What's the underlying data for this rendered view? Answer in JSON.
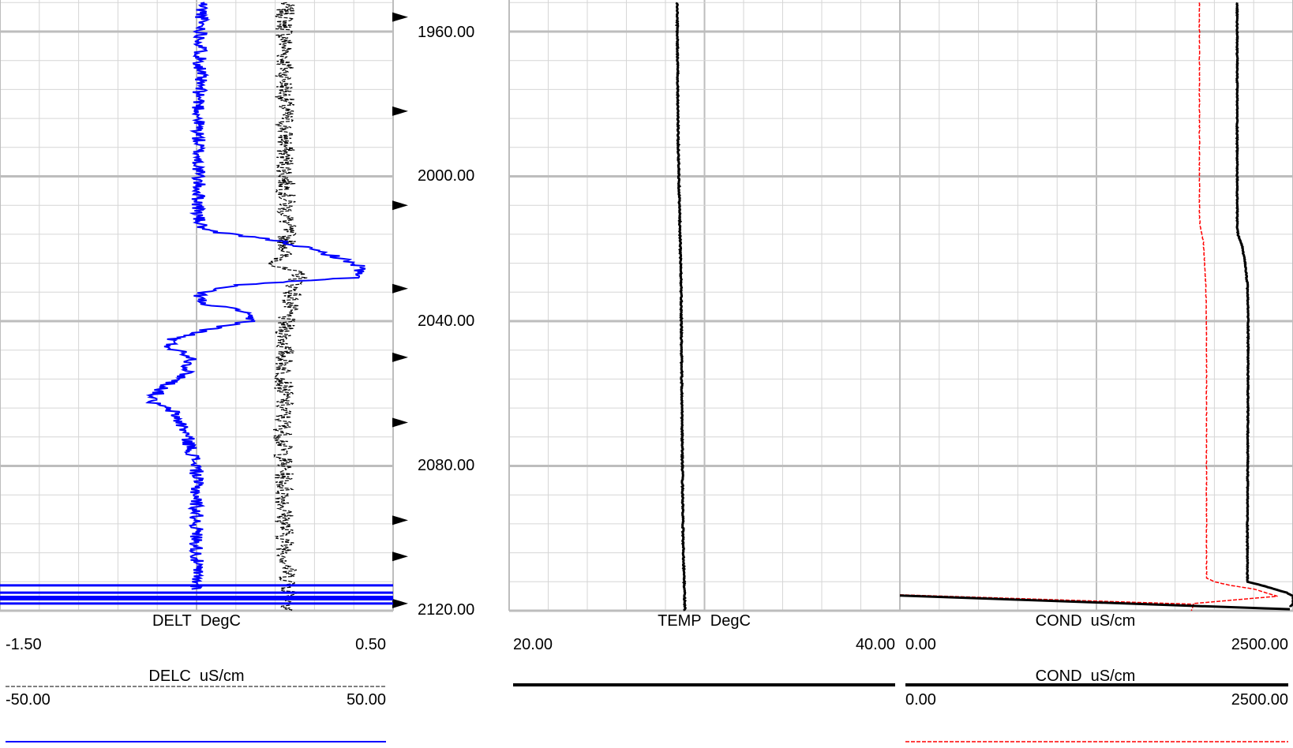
{
  "chart_data": {
    "type": "line",
    "title": "",
    "depth_axis": {
      "ticks": [
        "1960.00",
        "2000.00",
        "2040.00",
        "2080.00",
        "2120.00"
      ],
      "range": [
        1952,
        2120
      ],
      "major_step": 40,
      "minor_step": 8,
      "event_markers": [
        1956,
        1982,
        2008,
        2031,
        2050,
        2068,
        2095,
        2105,
        2118
      ]
    },
    "tracks": [
      {
        "name": "track-1",
        "grid_x_divisions": 10,
        "curves": [
          {
            "mnemonic": "DELT",
            "units": "DegC",
            "scale_left": "-1.50",
            "scale_right": "0.50",
            "color": "#000000",
            "style": "dashed",
            "depth": [
              1952,
              1990,
              2020,
              2025,
              2027,
              2030,
              2040,
              2070,
              2100,
              2113,
              2117,
              2120
            ],
            "value": [
              -0.05,
              -0.05,
              -0.04,
              -0.1,
              0.03,
              0.0,
              -0.05,
              -0.06,
              -0.05,
              -0.03,
              -0.02,
              -0.02
            ],
            "noise": 0.05
          },
          {
            "mnemonic": "DELC",
            "units": "uS/cm",
            "scale_left": "-50.00",
            "scale_right": "50.00",
            "color": "#0000ff",
            "style": "solid",
            "depth": [
              1952,
              1985,
              2012,
              2015,
              2018,
              2022,
              2025,
              2028,
              2030,
              2032,
              2035,
              2037,
              2040,
              2042,
              2045,
              2047,
              2050,
              2055,
              2058,
              2062,
              2065,
              2070,
              2080,
              2100,
              2110,
              2114
            ],
            "value": [
              1.5,
              0.5,
              0.5,
              2.0,
              22.0,
              35.0,
              42.0,
              40.0,
              10.0,
              1.0,
              1.0,
              11.0,
              14.0,
              4.0,
              -6.0,
              -7.0,
              -1.0,
              -3.0,
              -8.0,
              -12.0,
              -6.0,
              -3.0,
              0.0,
              0.0,
              0.0,
              0.0
            ],
            "noise": 1.8
          }
        ]
      },
      {
        "name": "track-2",
        "grid_x_divisions": 10,
        "curves": [
          {
            "mnemonic": "TEMP",
            "units": "DegC",
            "scale_left": "20.00",
            "scale_right": "40.00",
            "color": "#000000",
            "style": "solid",
            "depth": [
              1952,
              1990,
              2030,
              2070,
              2100,
              2110,
              2120
            ],
            "value": [
              28.6,
              28.65,
              28.8,
              28.85,
              28.9,
              28.95,
              29.0
            ],
            "noise": 0.03
          }
        ]
      },
      {
        "name": "track-3",
        "grid_x_divisions": 10,
        "curves": [
          {
            "mnemonic": "COND",
            "units": "uS/cm",
            "scale_left": "0.00",
            "scale_right": "2500.00",
            "color": "#000000",
            "style": "solid",
            "depth": [
              1952,
              2014,
              2016,
              2019,
              2024,
              2030,
              2040,
              2100,
              2112,
              2113,
              2115,
              2116,
              2118,
              2119
            ],
            "value": [
              2145,
              2145,
              2150,
              2175,
              2195,
              2210,
              2215,
              2210,
              2210,
              2300,
              2460,
              2500,
              2500,
              2480
            ],
            "bottom_sweep": {
              "depth": [
                2115.8,
                2119.6
              ],
              "value": [
                0,
                2480
              ]
            },
            "noise": 3
          },
          {
            "mnemonic": "COND",
            "units": "uS/cm",
            "scale_left": "0.00",
            "scale_right": "2500.00",
            "color": "#ff0000",
            "style": "dashed",
            "depth": [
              1952,
              2011,
              2014,
              2018,
              2030,
              2040,
              2100,
              2111,
              2112,
              2113,
              2114,
              2116,
              2118,
              2120
            ],
            "value": [
              1905,
              1905,
              1910,
              1930,
              1945,
              1950,
              1950,
              1950,
              2000,
              2100,
              2250,
              2400,
              1870,
              1855
            ],
            "bottom_sweep": {
              "depth": [
                2115.6,
                2118.2
              ],
              "value": [
                0,
                1870
              ]
            },
            "noise": 2
          }
        ]
      }
    ]
  }
}
